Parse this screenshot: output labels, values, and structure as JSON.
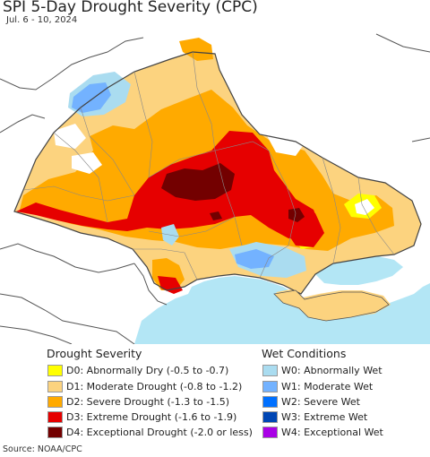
{
  "title": "SPI 5-Day Drought Severity (CPC)",
  "date_range": "Jul. 6 - 10, 2024",
  "source": "Source: NOAA/CPC",
  "colors": {
    "land": "#ffffff",
    "sea": "#b3e6f5",
    "border": "#555555",
    "internal_border": "#888888"
  },
  "legend": {
    "drought_title": "Drought Severity",
    "drought_items": [
      {
        "label": "D0: Abnormally Dry (-0.5 to -0.7)",
        "color": "#ffff00"
      },
      {
        "label": "D1: Moderate Drought (-0.8 to -1.2)",
        "color": "#fcd37f"
      },
      {
        "label": "D2: Severe Drought (-1.3 to -1.5)",
        "color": "#ffaa00"
      },
      {
        "label": "D3: Extreme Drought (-1.6 to -1.9)",
        "color": "#e60000"
      },
      {
        "label": "D4: Exceptional Drought (-2.0 or less)",
        "color": "#730000"
      }
    ],
    "wet_title": "Wet Conditions",
    "wet_items": [
      {
        "label": "W0: Abnormally Wet",
        "color": "#aadcf0"
      },
      {
        "label": "W1: Moderate Wet",
        "color": "#73b2ff"
      },
      {
        "label": "W2: Severe Wet",
        "color": "#0070ff"
      },
      {
        "label": "W3: Extreme Wet",
        "color": "#0046b4"
      },
      {
        "label": "W4: Exceptional Wet",
        "color": "#a900e6"
      }
    ]
  }
}
